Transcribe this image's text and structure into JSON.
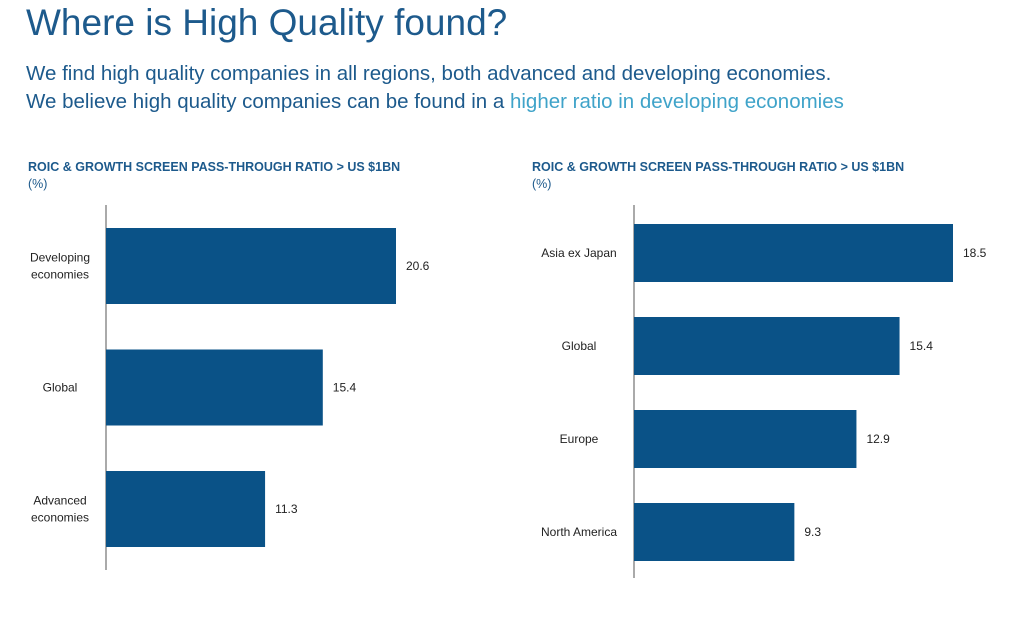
{
  "header": {
    "title": "Where is High Quality found?",
    "subtitle_line1": "We find high quality companies in all regions, both advanced and developing economies.",
    "subtitle_line2_prefix": "We believe high quality companies can be found in a ",
    "subtitle_line2_highlight": "higher ratio in developing economies"
  },
  "colors": {
    "bar": "#0a5287",
    "title": "#1d5a8c",
    "highlight": "#3fa3c9"
  },
  "chart_data": [
    {
      "type": "bar",
      "orientation": "horizontal",
      "title": "ROIC & GROWTH SCREEN PASS-THROUGH RATIO > US $1BN",
      "unit": "(%)",
      "categories": [
        [
          "Developing",
          "economies"
        ],
        [
          "Global"
        ],
        [
          "Advanced",
          "economies"
        ]
      ],
      "values": [
        20.6,
        15.4,
        11.3
      ],
      "value_labels": [
        "20.6",
        "15.4",
        "11.3"
      ],
      "xlim": [
        0,
        22
      ]
    },
    {
      "type": "bar",
      "orientation": "horizontal",
      "title": "ROIC & GROWTH SCREEN PASS-THROUGH RATIO > US $1BN",
      "unit": "(%)",
      "categories": [
        [
          "Asia ex Japan"
        ],
        [
          "Global"
        ],
        [
          "Europe"
        ],
        [
          "North America"
        ]
      ],
      "values": [
        18.5,
        15.4,
        12.9,
        9.3
      ],
      "value_labels": [
        "18.5",
        "15.4",
        "12.9",
        "9.3"
      ],
      "xlim": [
        0,
        22
      ]
    }
  ]
}
